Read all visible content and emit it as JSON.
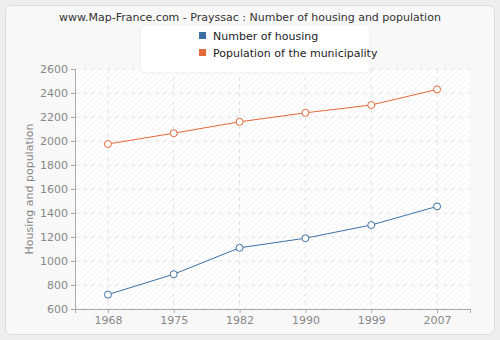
{
  "chart_data": {
    "type": "line",
    "title": "www.Map-France.com - Prayssac : Number of housing and population",
    "y_label": "Housing and population",
    "categories": [
      "1968",
      "1975",
      "1982",
      "1990",
      "1999",
      "2007"
    ],
    "series": [
      {
        "name": "Number of housing",
        "color": "#3e6fa4",
        "values": [
          720,
          890,
          1110,
          1190,
          1300,
          1455
        ],
        "marker": "circle"
      },
      {
        "name": "Population of the municipality",
        "color": "#e3693b",
        "values": [
          1975,
          2065,
          2160,
          2235,
          2300,
          2430
        ],
        "marker": "circle"
      }
    ],
    "ylim": [
      600,
      2600
    ],
    "yticks": [
      600,
      800,
      1000,
      1200,
      1400,
      1600,
      1800,
      2000,
      2200,
      2400,
      2600
    ],
    "grid": true,
    "legend": "top"
  }
}
